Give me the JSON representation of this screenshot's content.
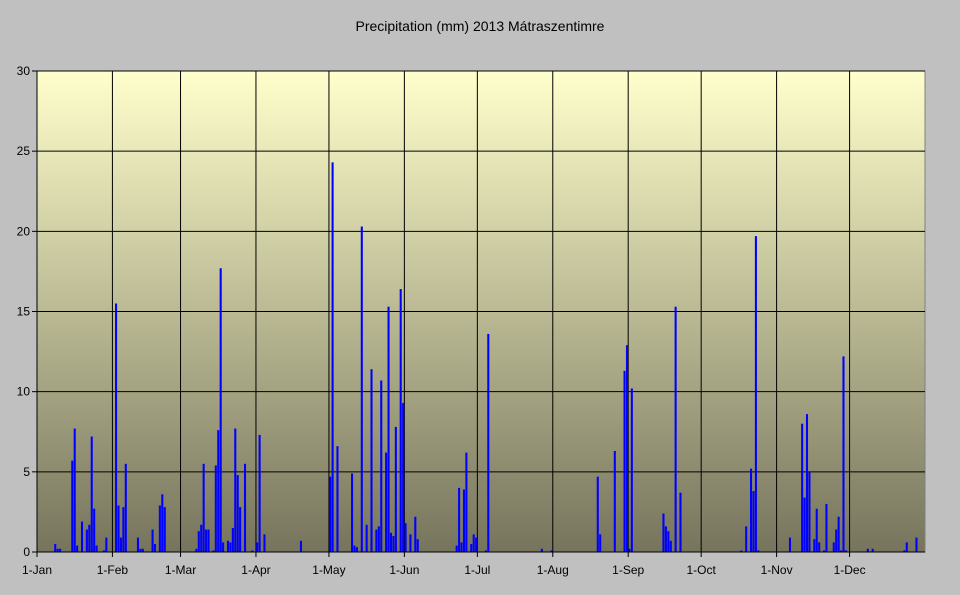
{
  "chart_data": {
    "type": "bar",
    "title": "Precipitation (mm) 2013 Mátraszentimre",
    "xlabel": "",
    "ylabel": "",
    "ylim": [
      0,
      30
    ],
    "yticks": [
      0,
      5,
      10,
      15,
      20,
      25,
      30
    ],
    "grid": true,
    "legend": "none",
    "x_ticks": [
      {
        "label": "1-Jan",
        "day": 1
      },
      {
        "label": "1-Feb",
        "day": 32
      },
      {
        "label": "1-Mar",
        "day": 60
      },
      {
        "label": "1-Apr",
        "day": 91
      },
      {
        "label": "1-May",
        "day": 121
      },
      {
        "label": "1-Jun",
        "day": 152
      },
      {
        "label": "1-Jul",
        "day": 182
      },
      {
        "label": "1-Aug",
        "day": 213
      },
      {
        "label": "1-Sep",
        "day": 244
      },
      {
        "label": "1-Oct",
        "day": 274
      },
      {
        "label": "1-Nov",
        "day": 305
      },
      {
        "label": "1-Dec",
        "day": 335
      }
    ],
    "colors": {
      "bar": "#0000ff",
      "plot_top": "#ffffcc",
      "plot_bottom": "#76745c",
      "background": "#c0c0c0",
      "grid": "#000000"
    },
    "series": [
      {
        "values": [
          {
            "day": 8,
            "value": 0.5
          },
          {
            "day": 9,
            "value": 0.2
          },
          {
            "day": 10,
            "value": 0.2
          },
          {
            "day": 15,
            "value": 5.7
          },
          {
            "day": 16,
            "value": 7.7
          },
          {
            "day": 17,
            "value": 0.4
          },
          {
            "day": 19,
            "value": 1.9
          },
          {
            "day": 21,
            "value": 1.4
          },
          {
            "day": 22,
            "value": 1.7
          },
          {
            "day": 23,
            "value": 7.2
          },
          {
            "day": 24,
            "value": 2.7
          },
          {
            "day": 25,
            "value": 0.4
          },
          {
            "day": 28,
            "value": 0.1
          },
          {
            "day": 29,
            "value": 0.9
          },
          {
            "day": 33,
            "value": 15.5
          },
          {
            "day": 34,
            "value": 2.9
          },
          {
            "day": 35,
            "value": 0.9
          },
          {
            "day": 36,
            "value": 2.8
          },
          {
            "day": 37,
            "value": 5.5
          },
          {
            "day": 42,
            "value": 0.9
          },
          {
            "day": 43,
            "value": 0.2
          },
          {
            "day": 44,
            "value": 0.2
          },
          {
            "day": 48,
            "value": 1.4
          },
          {
            "day": 49,
            "value": 0.5
          },
          {
            "day": 51,
            "value": 2.9
          },
          {
            "day": 52,
            "value": 3.6
          },
          {
            "day": 53,
            "value": 2.8
          },
          {
            "day": 66,
            "value": 0.2
          },
          {
            "day": 67,
            "value": 1.3
          },
          {
            "day": 68,
            "value": 1.7
          },
          {
            "day": 69,
            "value": 5.5
          },
          {
            "day": 70,
            "value": 1.4
          },
          {
            "day": 71,
            "value": 1.4
          },
          {
            "day": 73,
            "value": 0.1
          },
          {
            "day": 74,
            "value": 5.4
          },
          {
            "day": 75,
            "value": 7.6
          },
          {
            "day": 76,
            "value": 17.7
          },
          {
            "day": 77,
            "value": 0.6
          },
          {
            "day": 79,
            "value": 0.7
          },
          {
            "day": 80,
            "value": 0.6
          },
          {
            "day": 81,
            "value": 1.5
          },
          {
            "day": 82,
            "value": 7.7
          },
          {
            "day": 83,
            "value": 4.8
          },
          {
            "day": 84,
            "value": 2.8
          },
          {
            "day": 86,
            "value": 5.5
          },
          {
            "day": 89,
            "value": 0.1
          },
          {
            "day": 91,
            "value": 0.6
          },
          {
            "day": 92,
            "value": 7.3
          },
          {
            "day": 94,
            "value": 1.1
          },
          {
            "day": 109,
            "value": 0.7
          },
          {
            "day": 121,
            "value": 4.7
          },
          {
            "day": 122,
            "value": 24.3
          },
          {
            "day": 124,
            "value": 6.6
          },
          {
            "day": 130,
            "value": 4.9
          },
          {
            "day": 131,
            "value": 0.4
          },
          {
            "day": 132,
            "value": 0.3
          },
          {
            "day": 134,
            "value": 20.3
          },
          {
            "day": 136,
            "value": 1.7
          },
          {
            "day": 138,
            "value": 11.4
          },
          {
            "day": 140,
            "value": 1.4
          },
          {
            "day": 141,
            "value": 1.6
          },
          {
            "day": 142,
            "value": 10.7
          },
          {
            "day": 144,
            "value": 6.2
          },
          {
            "day": 145,
            "value": 15.3
          },
          {
            "day": 146,
            "value": 1.2
          },
          {
            "day": 147,
            "value": 1.0
          },
          {
            "day": 148,
            "value": 7.8
          },
          {
            "day": 150,
            "value": 16.4
          },
          {
            "day": 151,
            "value": 9.3
          },
          {
            "day": 152,
            "value": 1.8
          },
          {
            "day": 154,
            "value": 1.1
          },
          {
            "day": 156,
            "value": 2.2
          },
          {
            "day": 157,
            "value": 0.8
          },
          {
            "day": 173,
            "value": 0.4
          },
          {
            "day": 174,
            "value": 4.0
          },
          {
            "day": 175,
            "value": 0.6
          },
          {
            "day": 176,
            "value": 3.9
          },
          {
            "day": 177,
            "value": 6.2
          },
          {
            "day": 179,
            "value": 0.5
          },
          {
            "day": 180,
            "value": 1.1
          },
          {
            "day": 181,
            "value": 0.9
          },
          {
            "day": 185,
            "value": 0.1
          },
          {
            "day": 186,
            "value": 13.6
          },
          {
            "day": 208,
            "value": 0.2
          },
          {
            "day": 212,
            "value": 0.1
          },
          {
            "day": 231,
            "value": 4.7
          },
          {
            "day": 232,
            "value": 1.1
          },
          {
            "day": 238,
            "value": 6.3
          },
          {
            "day": 242,
            "value": 11.3
          },
          {
            "day": 243,
            "value": 12.9
          },
          {
            "day": 244,
            "value": 0.2
          },
          {
            "day": 245,
            "value": 10.2
          },
          {
            "day": 258,
            "value": 2.4
          },
          {
            "day": 259,
            "value": 1.6
          },
          {
            "day": 260,
            "value": 1.3
          },
          {
            "day": 261,
            "value": 0.7
          },
          {
            "day": 263,
            "value": 15.3
          },
          {
            "day": 265,
            "value": 3.7
          },
          {
            "day": 290,
            "value": 0.1
          },
          {
            "day": 292,
            "value": 1.6
          },
          {
            "day": 294,
            "value": 5.2
          },
          {
            "day": 295,
            "value": 3.8
          },
          {
            "day": 296,
            "value": 19.7
          },
          {
            "day": 297,
            "value": 0.1
          },
          {
            "day": 310,
            "value": 0.9
          },
          {
            "day": 315,
            "value": 8.0
          },
          {
            "day": 316,
            "value": 3.4
          },
          {
            "day": 317,
            "value": 8.6
          },
          {
            "day": 318,
            "value": 5.0
          },
          {
            "day": 320,
            "value": 0.8
          },
          {
            "day": 321,
            "value": 2.7
          },
          {
            "day": 322,
            "value": 0.6
          },
          {
            "day": 324,
            "value": 0.1
          },
          {
            "day": 325,
            "value": 3.0
          },
          {
            "day": 328,
            "value": 0.6
          },
          {
            "day": 329,
            "value": 1.4
          },
          {
            "day": 330,
            "value": 2.2
          },
          {
            "day": 331,
            "value": 0.1
          },
          {
            "day": 332,
            "value": 12.2
          },
          {
            "day": 333,
            "value": 0.1
          },
          {
            "day": 342,
            "value": 0.2
          },
          {
            "day": 344,
            "value": 0.2
          },
          {
            "day": 357,
            "value": 0.1
          },
          {
            "day": 358,
            "value": 0.6
          },
          {
            "day": 362,
            "value": 0.9
          }
        ]
      }
    ]
  }
}
